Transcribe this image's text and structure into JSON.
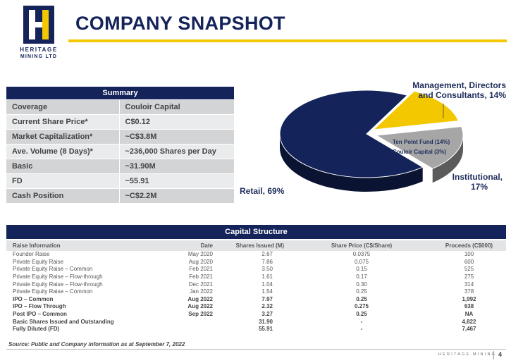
{
  "logo": {
    "line1": "HERITAGE",
    "line2": "MINING LTD"
  },
  "title": "COMPANY SNAPSHOT",
  "summary": {
    "header": "Summary",
    "rows": [
      {
        "label": "Coverage",
        "value": "Couloir Capital"
      },
      {
        "label": "Current Share Price*",
        "value": "C$0.12"
      },
      {
        "label": "Market Capitalization*",
        "value": "~C$3.8M"
      },
      {
        "label": "Ave. Volume (8 Days)*",
        "value": "~236,000 Shares per Day"
      },
      {
        "label": "Basic",
        "value": "~31.90M"
      },
      {
        "label": "FD",
        "value": "~55.91"
      },
      {
        "label": "Cash Position",
        "value": "~C$2.2M"
      }
    ]
  },
  "chart_data": {
    "type": "pie",
    "title": "",
    "slices": [
      {
        "label": "Retail, 69%",
        "value": 69,
        "color": "#14235a"
      },
      {
        "label": "Management, Directors and Consultants, 14%",
        "value": 14,
        "color": "#f3c800"
      },
      {
        "label": "Institutional, 17%",
        "value": 17,
        "color": "#a6a6a6"
      }
    ],
    "inner_labels": [
      "Ten Point Fund (14%)",
      "Couloir Capital (3%)"
    ],
    "label_lines": {
      "mgmt_1": "Management, Directors",
      "mgmt_2": "and Consultants, 14%",
      "inst_1": "Institutional,",
      "inst_2": "17%",
      "retail": "Retail, 69%"
    }
  },
  "capital": {
    "header": "Capital Structure",
    "columns": [
      "Raise Information",
      "Date",
      "Shares Issued (M)",
      "Share Price (C$/Share)",
      "Proceeds (C$000)"
    ],
    "rows": [
      {
        "c": [
          "Founder Raise",
          "May 2020",
          "2.67",
          "0.0375",
          "100"
        ],
        "bold": false
      },
      {
        "c": [
          "Private Equity Raise",
          "Aug 2020",
          "7.86",
          "0.075",
          "600"
        ],
        "bold": false
      },
      {
        "c": [
          "Private Equity Raise – Common",
          "Feb 2021",
          "3.50",
          "0.15",
          "525"
        ],
        "bold": false
      },
      {
        "c": [
          "Private Equity Raise – Flow-through",
          "Feb 2021",
          "1.61",
          "0.17",
          "275"
        ],
        "bold": false
      },
      {
        "c": [
          "Private Equity Raise – Flow-through",
          "Dec 2021",
          "1.04",
          "0.30",
          "314"
        ],
        "bold": false
      },
      {
        "c": [
          "Private Equity Raise – Common",
          "Jan 2022",
          "1.54",
          "0.25",
          "378"
        ],
        "bold": false
      },
      {
        "c": [
          "IPO – Common",
          "Aug 2022",
          "7.97",
          "0.25",
          "1,992"
        ],
        "bold": true
      },
      {
        "c": [
          "IPO – Flow Through",
          "Aug 2022",
          "2.32",
          "0.275",
          "638"
        ],
        "bold": true
      },
      {
        "c": [
          "Post IPO – Common",
          "Sep 2022",
          "3.27",
          "0.25",
          "NA"
        ],
        "bold": true
      },
      {
        "c": [
          "Basic Shares Issued and Outstanding",
          "",
          "31.90",
          "-",
          "4,822"
        ],
        "bold": true
      },
      {
        "c": [
          "Fully Diluted (FD)",
          "",
          "55.91",
          "-",
          "7,467"
        ],
        "bold": true
      }
    ]
  },
  "source": "Source: Public and Company information as at September 7, 2022",
  "footer": {
    "brand": "HERITAGE MINING",
    "page": "4"
  }
}
